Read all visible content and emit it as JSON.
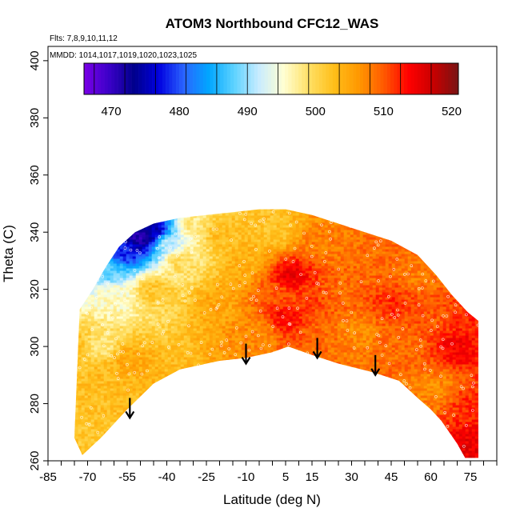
{
  "chart_data": {
    "type": "heatmap",
    "title": "ATOM3 Northbound CFC12_WAS",
    "flights_note": "Flts: 7,8,9,10,11,12",
    "dates_note": "MMDD: 1014,1017,1019,1020,1023,1025",
    "xlabel": "Latitude (deg N)",
    "ylabel": "Theta (C)",
    "xlim": [
      -85,
      85
    ],
    "ylim": [
      260,
      405
    ],
    "x_ticks": [
      -85,
      -70,
      -55,
      -40,
      -25,
      -10,
      5,
      15,
      30,
      45,
      60,
      75
    ],
    "y_ticks": [
      260,
      280,
      300,
      320,
      340,
      360,
      380,
      400
    ],
    "colorbar": {
      "min": 466,
      "max": 521,
      "tick_values": [
        470,
        480,
        490,
        500,
        510,
        520
      ],
      "colors": [
        "#7a00e6",
        "#3b00c8",
        "#00008b",
        "#0000e0",
        "#2a64ff",
        "#00a6ff",
        "#5cd2ff",
        "#c8ecff",
        "#ffffd2",
        "#ffe066",
        "#ffbf1a",
        "#ff9800",
        "#ff5a00",
        "#ff0000",
        "#c80000",
        "#781414"
      ]
    },
    "field": {
      "envelope_top": [
        [
          -73,
          313
        ],
        [
          -68,
          320
        ],
        [
          -63,
          328
        ],
        [
          -58,
          335
        ],
        [
          -52,
          340
        ],
        [
          -45,
          343
        ],
        [
          -35,
          345
        ],
        [
          -25,
          346
        ],
        [
          -15,
          347
        ],
        [
          -5,
          348
        ],
        [
          5,
          348
        ],
        [
          15,
          346
        ],
        [
          25,
          343
        ],
        [
          35,
          340
        ],
        [
          45,
          337
        ],
        [
          55,
          332
        ],
        [
          62,
          325
        ],
        [
          68,
          318
        ],
        [
          74,
          312
        ],
        [
          78,
          309
        ]
      ],
      "envelope_bottom": [
        [
          -75,
          268
        ],
        [
          -72,
          262
        ],
        [
          -65,
          268
        ],
        [
          -55,
          278
        ],
        [
          -45,
          287
        ],
        [
          -35,
          292
        ],
        [
          -20,
          295
        ],
        [
          -10,
          296
        ],
        [
          0,
          298
        ],
        [
          6,
          300
        ],
        [
          15,
          297
        ],
        [
          25,
          294
        ],
        [
          38,
          291
        ],
        [
          48,
          288
        ],
        [
          55,
          282
        ],
        [
          60,
          278
        ],
        [
          64,
          274
        ],
        [
          70,
          266
        ],
        [
          73,
          261
        ],
        [
          78,
          261
        ]
      ],
      "anchors": [
        {
          "lat": -75,
          "theta": 300,
          "value": 503
        },
        {
          "lat": -65,
          "theta": 300,
          "value": 498
        },
        {
          "lat": -63,
          "theta": 290,
          "value": 503
        },
        {
          "lat": -55,
          "theta": 295,
          "value": 505
        },
        {
          "lat": -60,
          "theta": 318,
          "value": 496
        },
        {
          "lat": -62,
          "theta": 326,
          "value": 488
        },
        {
          "lat": -55,
          "theta": 333,
          "value": 478
        },
        {
          "lat": -50,
          "theta": 338,
          "value": 470
        },
        {
          "lat": -45,
          "theta": 340,
          "value": 474
        },
        {
          "lat": -40,
          "theta": 336,
          "value": 492
        },
        {
          "lat": -35,
          "theta": 330,
          "value": 500
        },
        {
          "lat": -45,
          "theta": 320,
          "value": 502
        },
        {
          "lat": -30,
          "theta": 342,
          "value": 498
        },
        {
          "lat": -20,
          "theta": 340,
          "value": 503
        },
        {
          "lat": -20,
          "theta": 315,
          "value": 505
        },
        {
          "lat": -10,
          "theta": 330,
          "value": 504
        },
        {
          "lat": -5,
          "theta": 305,
          "value": 507
        },
        {
          "lat": 0,
          "theta": 340,
          "value": 502
        },
        {
          "lat": 2,
          "theta": 318,
          "value": 510
        },
        {
          "lat": 5,
          "theta": 310,
          "value": 514
        },
        {
          "lat": 7,
          "theta": 325,
          "value": 515
        },
        {
          "lat": 12,
          "theta": 315,
          "value": 511
        },
        {
          "lat": 18,
          "theta": 305,
          "value": 509
        },
        {
          "lat": 20,
          "theta": 335,
          "value": 508
        },
        {
          "lat": 28,
          "theta": 320,
          "value": 509
        },
        {
          "lat": 32,
          "theta": 305,
          "value": 507
        },
        {
          "lat": 40,
          "theta": 330,
          "value": 509
        },
        {
          "lat": 45,
          "theta": 315,
          "value": 512
        },
        {
          "lat": 50,
          "theta": 300,
          "value": 509
        },
        {
          "lat": 55,
          "theta": 325,
          "value": 508
        },
        {
          "lat": 60,
          "theta": 310,
          "value": 510
        },
        {
          "lat": 62,
          "theta": 285,
          "value": 507
        },
        {
          "lat": 70,
          "theta": 300,
          "value": 514
        },
        {
          "lat": 75,
          "theta": 280,
          "value": 512
        },
        {
          "lat": 75,
          "theta": 265,
          "value": 515
        },
        {
          "lat": 77,
          "theta": 310,
          "value": 512
        }
      ]
    },
    "arrows": [
      {
        "lat": -54,
        "theta_top": 282,
        "theta_tip": 275
      },
      {
        "lat": -10,
        "theta_top": 301,
        "theta_tip": 294
      },
      {
        "lat": 17,
        "theta_top": 303,
        "theta_tip": 296
      },
      {
        "lat": 39,
        "theta_top": 297,
        "theta_tip": 290
      }
    ]
  }
}
